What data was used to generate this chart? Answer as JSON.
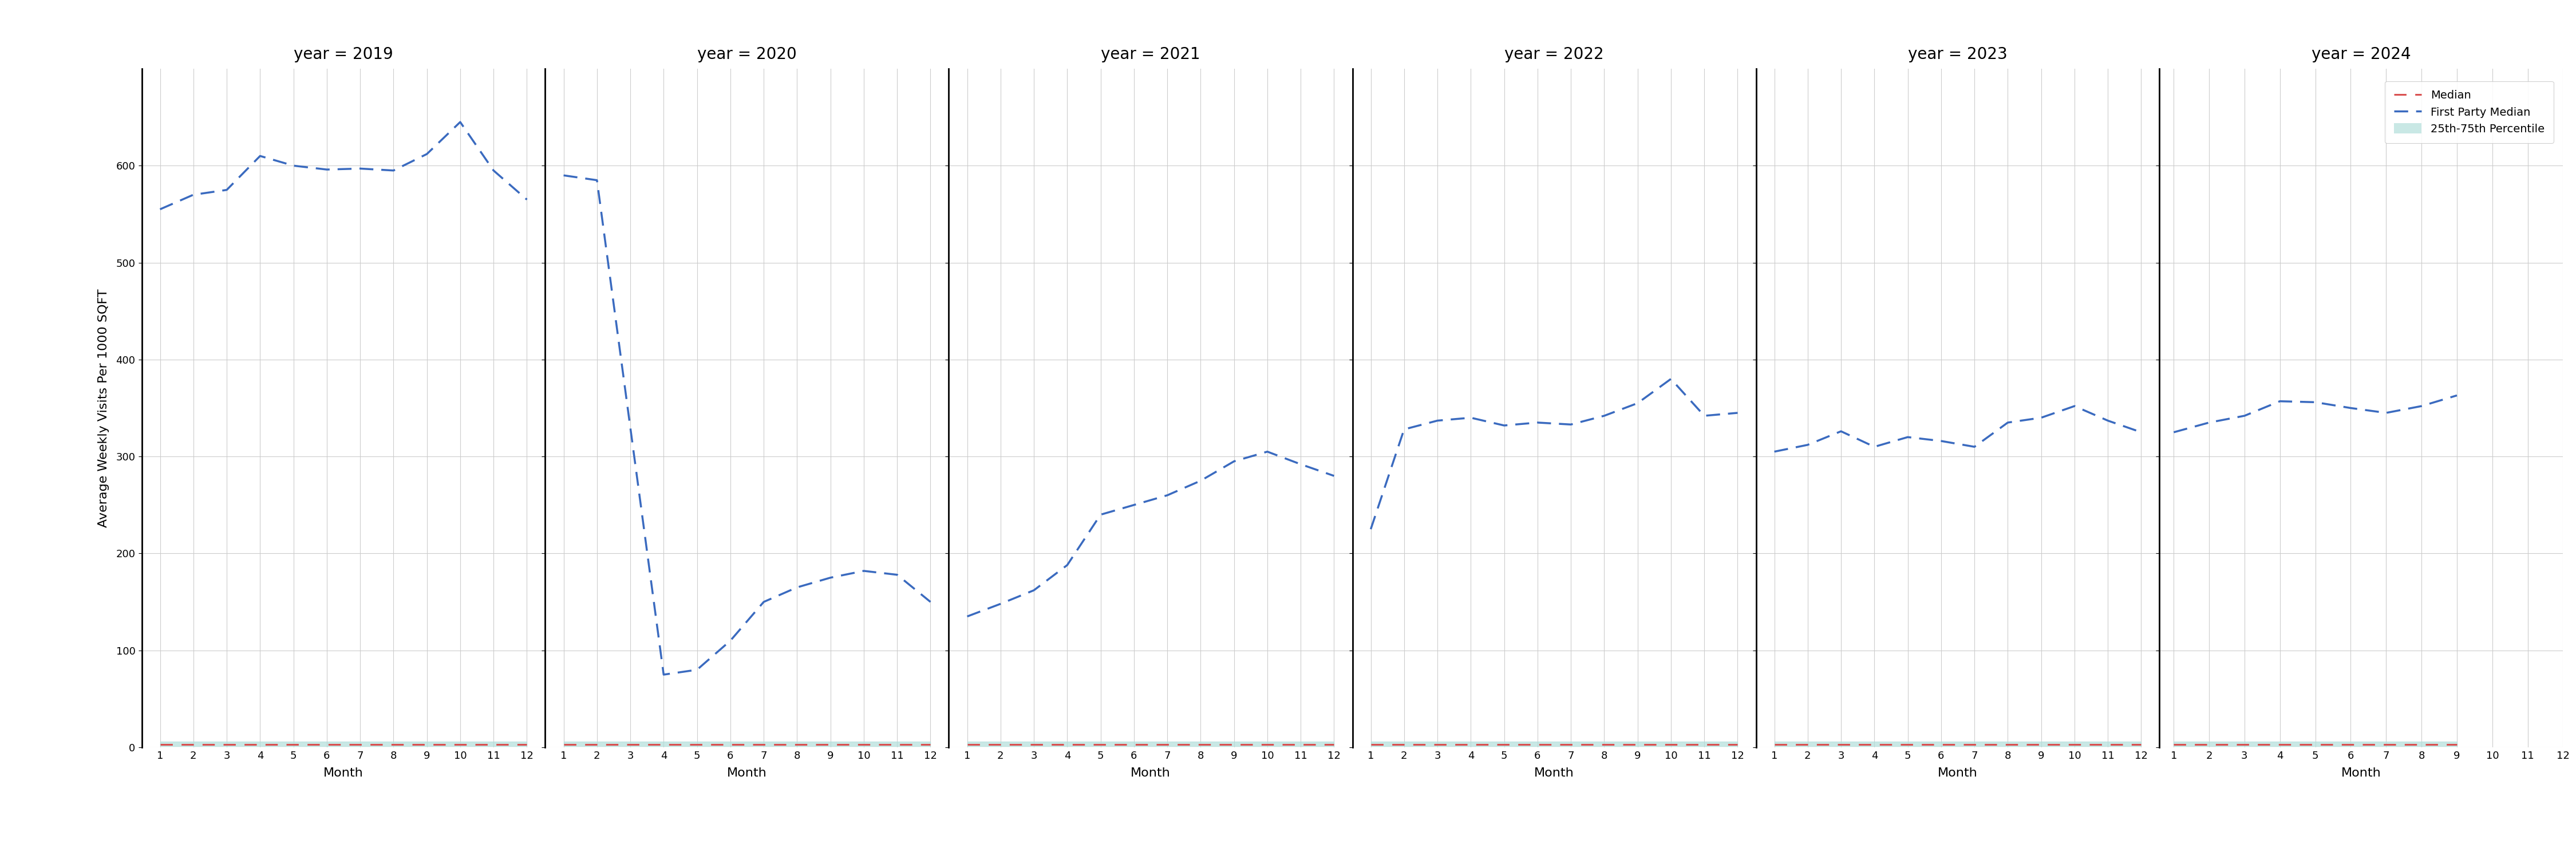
{
  "years": [
    2019,
    2020,
    2021,
    2022,
    2023,
    2024
  ],
  "first_party_median": {
    "2019": [
      555,
      570,
      575,
      610,
      600,
      596,
      597,
      595,
      612,
      645,
      595,
      565
    ],
    "2020": [
      590,
      585,
      null,
      75,
      80,
      110,
      150,
      165,
      175,
      182,
      178,
      150
    ],
    "2021": [
      135,
      148,
      162,
      188,
      240,
      250,
      260,
      275,
      295,
      305,
      292,
      280
    ],
    "2022": [
      225,
      328,
      337,
      340,
      332,
      335,
      333,
      342,
      355,
      380,
      342,
      345
    ],
    "2023": [
      305,
      312,
      326,
      310,
      320,
      316,
      310,
      335,
      340,
      352,
      337,
      325
    ],
    "2024": [
      325,
      335,
      342,
      357,
      356,
      350,
      345,
      352,
      363,
      null,
      null,
      null
    ]
  },
  "median": {
    "2019": [
      3,
      3,
      3,
      3,
      3,
      3,
      3,
      3,
      3,
      3,
      3,
      3
    ],
    "2020": [
      3,
      3,
      3,
      3,
      3,
      3,
      3,
      3,
      3,
      3,
      3,
      3
    ],
    "2021": [
      3,
      3,
      3,
      3,
      3,
      3,
      3,
      3,
      3,
      3,
      3,
      3
    ],
    "2022": [
      3,
      3,
      3,
      3,
      3,
      3,
      3,
      3,
      3,
      3,
      3,
      3
    ],
    "2023": [
      3,
      3,
      3,
      3,
      3,
      3,
      3,
      3,
      3,
      3,
      3,
      3
    ],
    "2024": [
      3,
      3,
      3,
      3,
      3,
      3,
      3,
      3,
      3,
      null,
      null,
      null
    ]
  },
  "percentile_25": {
    "2019": [
      1,
      1,
      1,
      1,
      1,
      1,
      1,
      1,
      1,
      1,
      1,
      1
    ],
    "2020": [
      1,
      1,
      1,
      1,
      1,
      1,
      1,
      1,
      1,
      1,
      1,
      1
    ],
    "2021": [
      1,
      1,
      1,
      1,
      1,
      1,
      1,
      1,
      1,
      1,
      1,
      1
    ],
    "2022": [
      1,
      1,
      1,
      1,
      1,
      1,
      1,
      1,
      1,
      1,
      1,
      1
    ],
    "2023": [
      1,
      1,
      1,
      1,
      1,
      1,
      1,
      1,
      1,
      1,
      1,
      1
    ],
    "2024": [
      1,
      1,
      1,
      1,
      1,
      1,
      1,
      1,
      1,
      null,
      null,
      null
    ]
  },
  "percentile_75": {
    "2019": [
      6,
      6,
      6,
      6,
      6,
      6,
      6,
      6,
      6,
      6,
      6,
      6
    ],
    "2020": [
      6,
      6,
      6,
      6,
      6,
      6,
      6,
      6,
      6,
      6,
      6,
      6
    ],
    "2021": [
      6,
      6,
      6,
      6,
      6,
      6,
      6,
      6,
      6,
      6,
      6,
      6
    ],
    "2022": [
      6,
      6,
      6,
      6,
      6,
      6,
      6,
      6,
      6,
      6,
      6,
      6
    ],
    "2023": [
      6,
      6,
      6,
      6,
      6,
      6,
      6,
      6,
      6,
      6,
      6,
      6
    ],
    "2024": [
      6,
      6,
      6,
      6,
      6,
      6,
      6,
      6,
      6,
      null,
      null,
      null
    ]
  },
  "ylim": [
    0,
    700
  ],
  "yticks": [
    0,
    100,
    200,
    300,
    400,
    500,
    600
  ],
  "ylabel": "Average Weekly Visits Per 1000 SQFT",
  "xlabel": "Month",
  "colors": {
    "median": "#d94f4f",
    "first_party": "#3a6abf",
    "percentile_fill": "#b2dfdb"
  },
  "legend_labels": [
    "Median",
    "First Party Median",
    "25th-75th Percentile"
  ],
  "panel_bg": "#ffffff",
  "fig_bg": "#ffffff",
  "grid_color": "#cccccc",
  "spine_color": "#000000"
}
